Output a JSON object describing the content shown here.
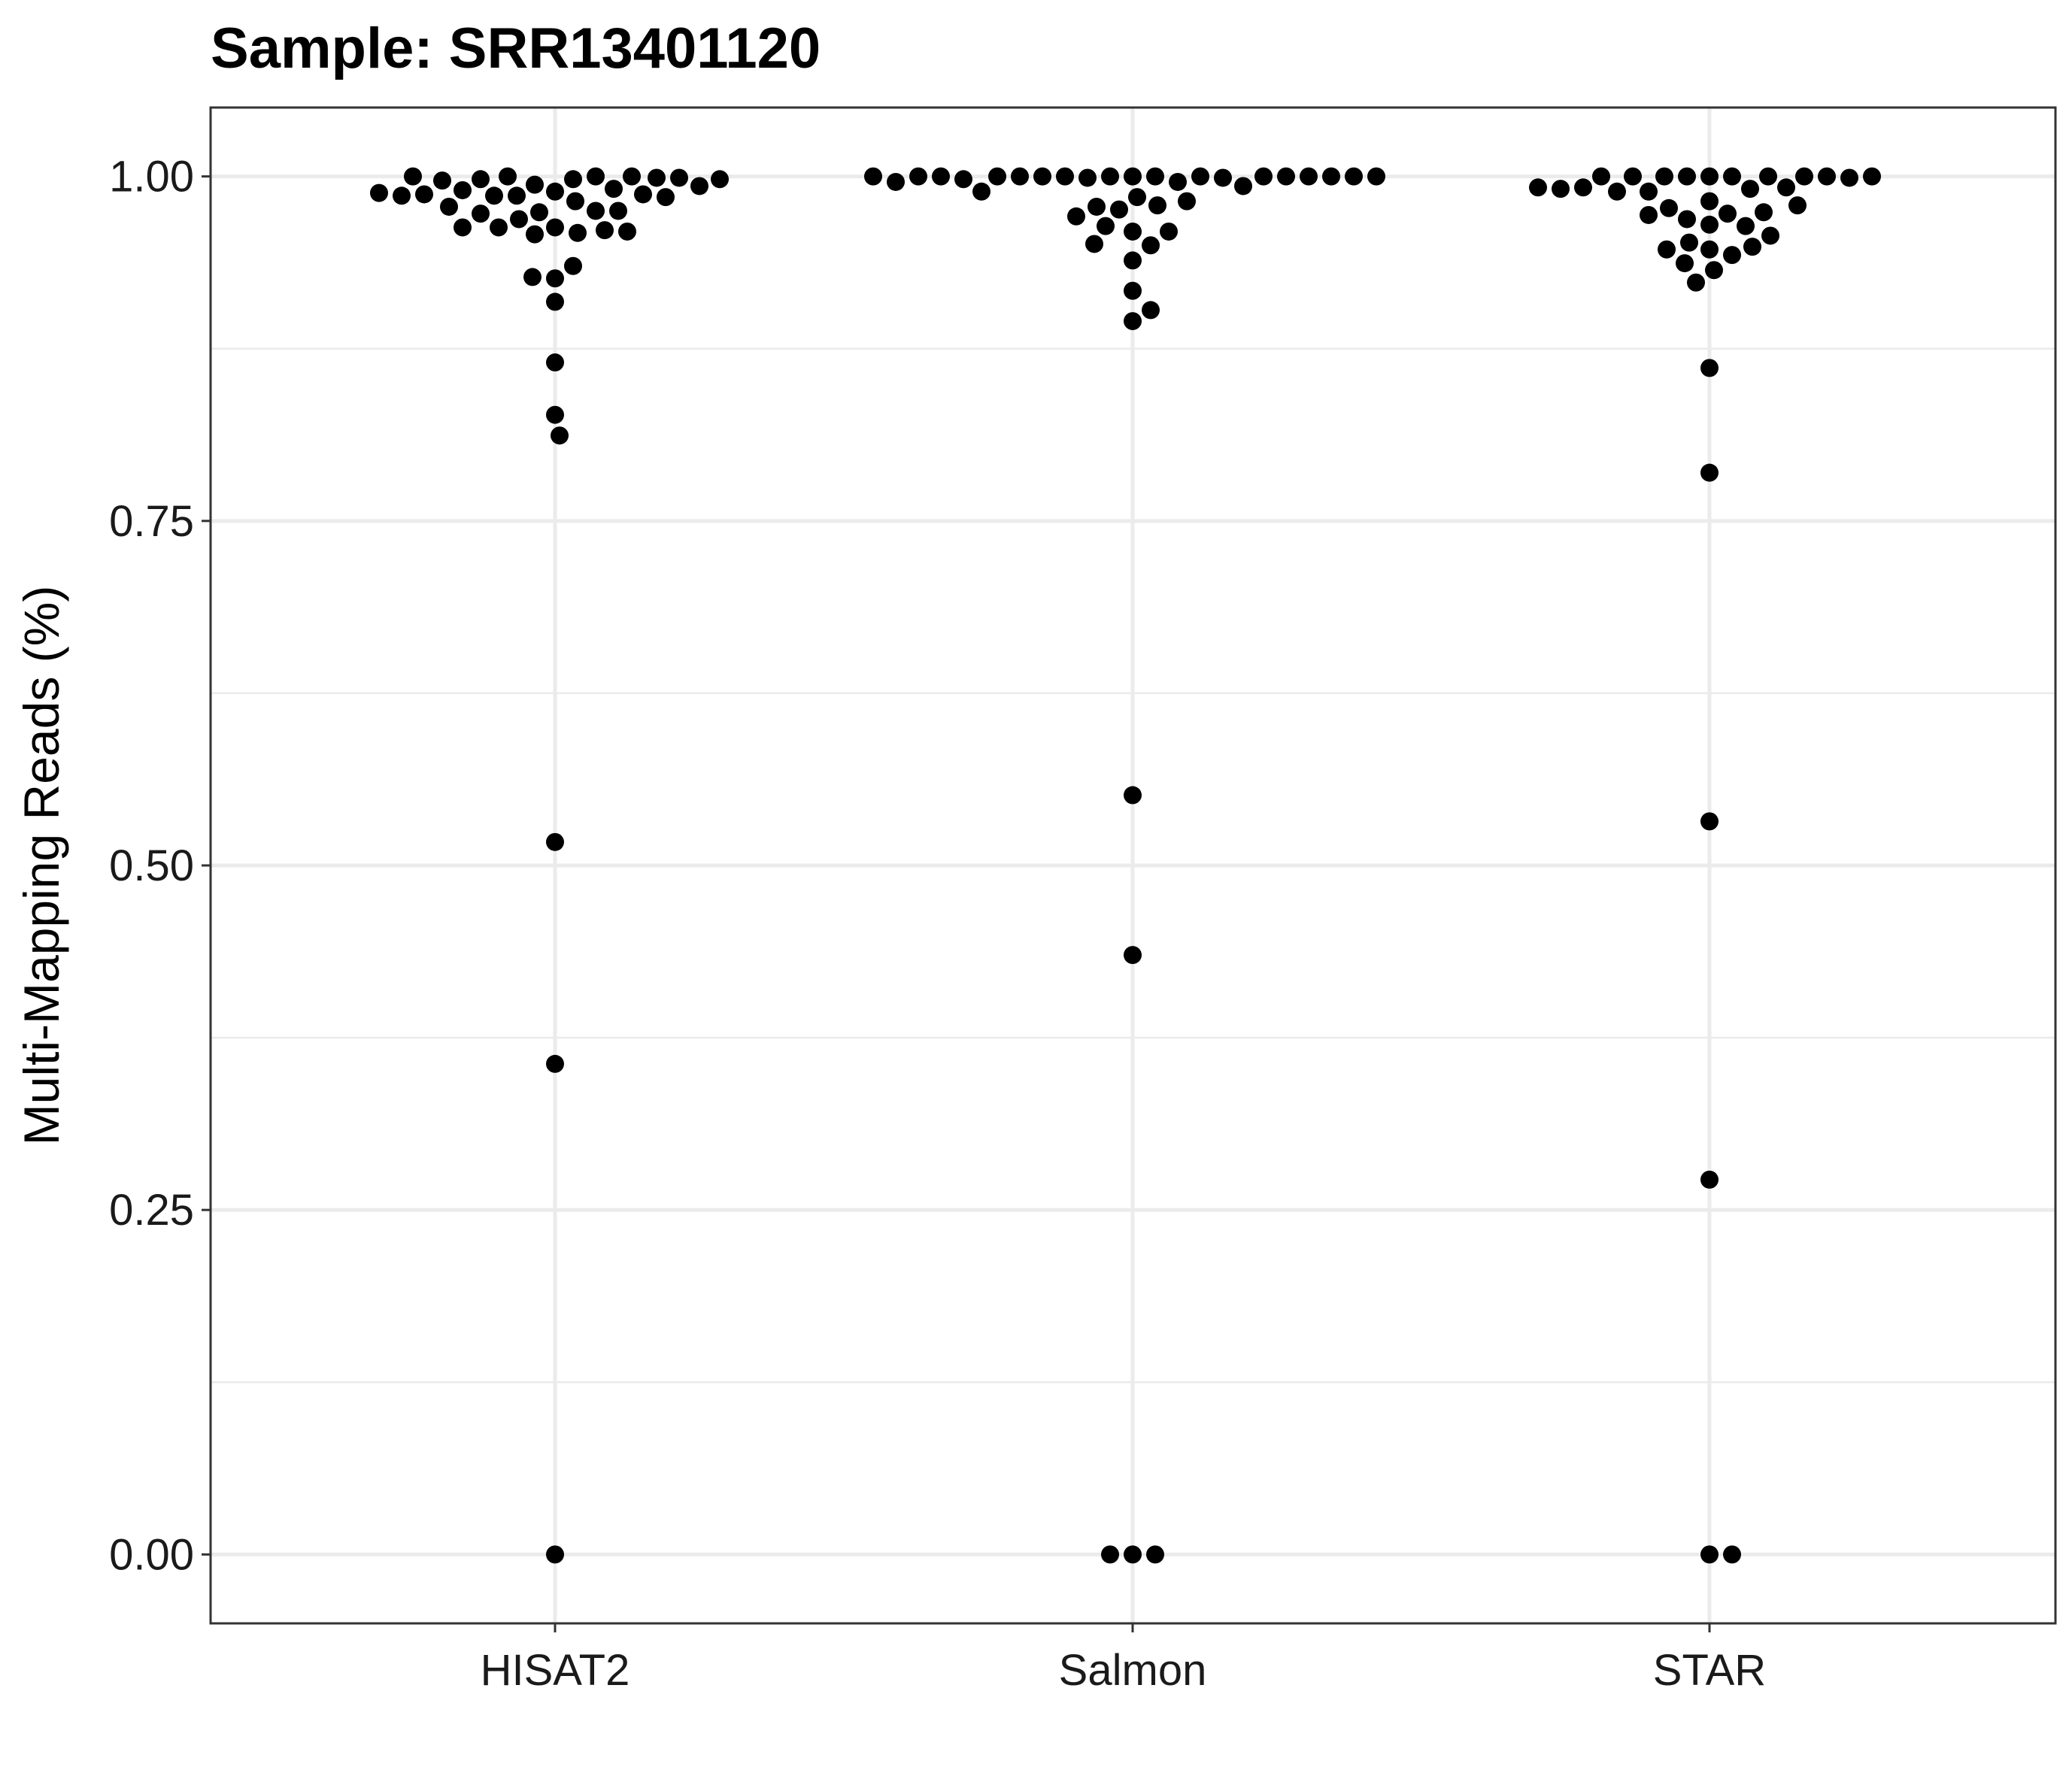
{
  "chart_data": {
    "type": "scatter",
    "subtype": "beeswarm",
    "title": "Sample: SRR13401120",
    "xlabel": "",
    "ylabel": "Multi-Mapping Reads (%)",
    "categories": [
      "HISAT2",
      "Salmon",
      "STAR"
    ],
    "ylim": [
      -0.05,
      1.05
    ],
    "yticks": [
      "0.00",
      "0.25",
      "0.50",
      "0.75",
      "1.00"
    ],
    "ytick_values": [
      0,
      0.25,
      0.5,
      0.75,
      1.0
    ],
    "grid": true,
    "point_color": "#000000",
    "series": [
      {
        "category": "HISAT2",
        "values": [
          0.989,
          0.998,
          0.994,
          0.982,
          0.986,
          1.0,
          0.991,
          0.963,
          0.974,
          1.0,
          0.986,
          0.959,
          0.998,
          0.969,
          0.926,
          0.975,
          1.0,
          0.987,
          0.961,
          0.935,
          0.99,
          0.963,
          0.927,
          0.909,
          0.999,
          0.985,
          0.975,
          0.96,
          0.997,
          0.973,
          0.958,
          0.999,
          0.987,
          0.963,
          0.978,
          0.993,
          1.0,
          0.986,
          0.998,
          0.988,
          0.865,
          0.827,
          0.812,
          0.517,
          0.356,
          0.0
        ]
      },
      {
        "category": "Salmon",
        "values": [
          1.0,
          1.0,
          1.0,
          0.996,
          0.999,
          1.0,
          1.0,
          0.999,
          0.985,
          0.976,
          1.0,
          0.993,
          0.979,
          0.96,
          1.0,
          0.95,
          1.0,
          0.964,
          0.978,
          0.939,
          1.0,
          0.96,
          0.951,
          0.982,
          0.971,
          1.0,
          0.989,
          0.998,
          1.0,
          1.0,
          1.0,
          1.0,
          1.0,
          0.996,
          1.0,
          1.0,
          0.917,
          0.895,
          0.903,
          0.551,
          0.435,
          0.0,
          0.0,
          0.0
        ]
      },
      {
        "category": "STAR",
        "values": [
          1.0,
          1.0,
          1.0,
          0.991,
          0.982,
          1.0,
          0.965,
          0.973,
          1.0,
          0.989,
          0.947,
          1.0,
          0.969,
          0.932,
          0.943,
          0.977,
          0.992,
          0.952,
          1.0,
          0.964,
          0.937,
          0.989,
          1.0,
          0.974,
          0.949,
          0.923,
          0.947,
          1.0,
          0.972,
          0.957,
          0.992,
          0.979,
          0.999,
          0.991,
          1.0,
          0.992,
          0.861,
          0.785,
          0.532,
          0.272,
          0.0,
          0.0
        ]
      }
    ]
  }
}
